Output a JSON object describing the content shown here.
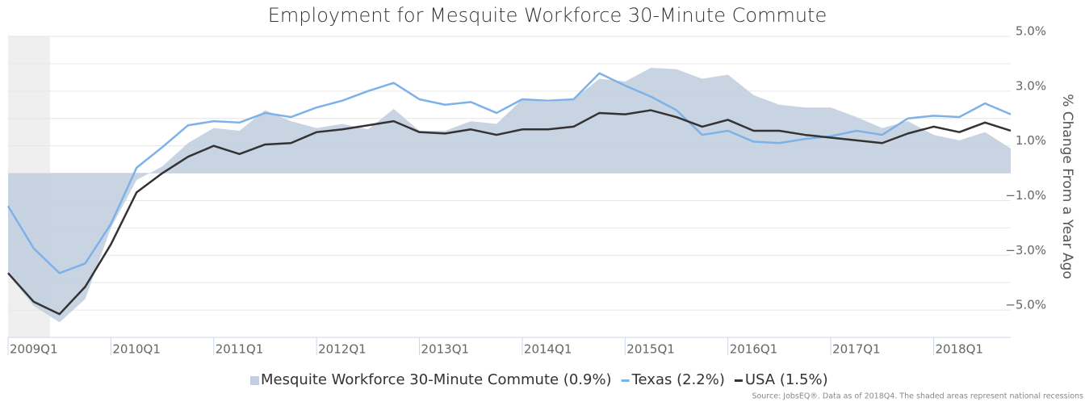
{
  "chart_data": {
    "type": "line",
    "title": "Employment for Mesquite Workforce 30-Minute Commute",
    "y_label": "% Change From a Year Ago",
    "source": "Source: JobsEQ®. Data as of 2018Q4. The shaded areas represent national recessions",
    "categories": [
      "2009Q1",
      null,
      null,
      null,
      "2010Q1",
      null,
      null,
      null,
      "2011Q1",
      null,
      null,
      null,
      "2012Q1",
      null,
      null,
      null,
      "2013Q1",
      null,
      null,
      null,
      "2014Q1",
      null,
      null,
      null,
      "2015Q1",
      null,
      null,
      null,
      "2016Q1",
      null,
      null,
      null,
      "2017Q1",
      null,
      null,
      null,
      "2018Q1",
      null,
      null,
      null
    ],
    "ylim": [
      -6,
      5
    ],
    "yticks": [
      {
        "value": 5,
        "label": "5.0%"
      },
      {
        "value": 3,
        "label": "3.0%"
      },
      {
        "value": 1,
        "label": "1.0%"
      },
      {
        "value": -1,
        "label": "−1.0%"
      },
      {
        "value": -3,
        "label": "−3.0%"
      },
      {
        "value": -5,
        "label": "−5.0%"
      }
    ],
    "ygrid": [
      -6,
      -5,
      -4,
      -3,
      -2,
      -1,
      0,
      1,
      2,
      3,
      4,
      5
    ],
    "grid": true,
    "series": [
      {
        "name": "Mesquite Workforce 30-Minute Commute (0.9%)",
        "style": "area",
        "color": "#c3cfe0",
        "values": [
          -3.7,
          -4.85,
          -5.45,
          -4.6,
          -2.0,
          -0.25,
          0.25,
          1.1,
          1.65,
          1.55,
          2.3,
          1.9,
          1.65,
          1.8,
          1.6,
          2.35,
          1.55,
          1.55,
          1.9,
          1.8,
          2.7,
          2.6,
          2.7,
          3.45,
          3.35,
          3.85,
          3.8,
          3.45,
          3.6,
          2.85,
          2.5,
          2.4,
          2.4,
          2.05,
          1.65,
          1.9,
          1.4,
          1.2,
          1.5,
          0.9
        ]
      },
      {
        "name": "Texas (2.2%)",
        "style": "line",
        "color": "#7cb2e8",
        "values": [
          -1.2,
          -2.75,
          -3.65,
          -3.3,
          -1.85,
          0.2,
          0.95,
          1.75,
          1.9,
          1.85,
          2.2,
          2.05,
          2.4,
          2.65,
          3.0,
          3.3,
          2.7,
          2.5,
          2.6,
          2.2,
          2.7,
          2.65,
          2.7,
          3.65,
          3.2,
          2.8,
          2.3,
          1.4,
          1.55,
          1.15,
          1.1,
          1.25,
          1.35,
          1.55,
          1.4,
          2.0,
          2.1,
          2.05,
          2.55,
          2.15
        ]
      },
      {
        "name": "USA (1.5%)",
        "style": "line",
        "color": "#333333",
        "values": [
          -3.65,
          -4.7,
          -5.15,
          -4.15,
          -2.6,
          -0.7,
          0.0,
          0.6,
          1.0,
          0.7,
          1.05,
          1.1,
          1.5,
          1.6,
          1.75,
          1.9,
          1.5,
          1.45,
          1.6,
          1.4,
          1.6,
          1.6,
          1.7,
          2.2,
          2.15,
          2.3,
          2.05,
          1.7,
          1.95,
          1.55,
          1.55,
          1.4,
          1.3,
          1.2,
          1.1,
          1.45,
          1.7,
          1.5,
          1.85,
          1.55
        ]
      }
    ]
  }
}
